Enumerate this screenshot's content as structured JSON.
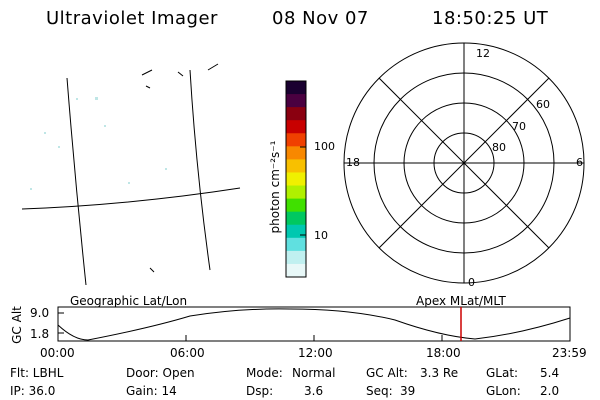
{
  "header": {
    "instrument": "Ultraviolet Imager",
    "date": "08 Nov 07",
    "time": "18:50:25 UT"
  },
  "colorbar": {
    "label": "photon cm⁻²s⁻¹",
    "ticks": [
      "100",
      "10"
    ],
    "colors": [
      "#1a0030",
      "#4a0040",
      "#8a0010",
      "#c80000",
      "#f04000",
      "#f88800",
      "#f8c000",
      "#f0f000",
      "#b0f000",
      "#40e000",
      "#00c860",
      "#00c8b0",
      "#60e0e0",
      "#c0f0f0",
      "#e8f8f8"
    ]
  },
  "polar": {
    "mlt_labels": {
      "top": "12",
      "left": "18",
      "right": "6",
      "bottom": "0"
    },
    "lat_labels": [
      "60",
      "70",
      "80"
    ]
  },
  "timeline": {
    "left_label": "Geographic Lat/Lon",
    "right_label": "Apex MLat/MLT",
    "y_axis_label": "GC Alt",
    "y_ticks": [
      "9.0",
      "1.8"
    ],
    "x_ticks": [
      "00:00",
      "06:00",
      "12:00",
      "18:00",
      "23:59"
    ],
    "marker_color": "#cc0000"
  },
  "stats": {
    "flt": "Flt: LBHL",
    "ip": "IP: 36.0",
    "door": "Door: Open",
    "gain": "Gain: 14",
    "mode_label": "Mode:",
    "mode_value": "Normal",
    "dsp_label": "Dsp:",
    "dsp_value": "3.6",
    "gcalt_label": "GC Alt:",
    "gcalt_value": "3.3 Re",
    "seq_label": "Seq:",
    "seq_value": "39",
    "glat_label": "GLat:",
    "glat_value": "5.4",
    "glon_label": "GLon:",
    "glon_value": "2.0"
  }
}
